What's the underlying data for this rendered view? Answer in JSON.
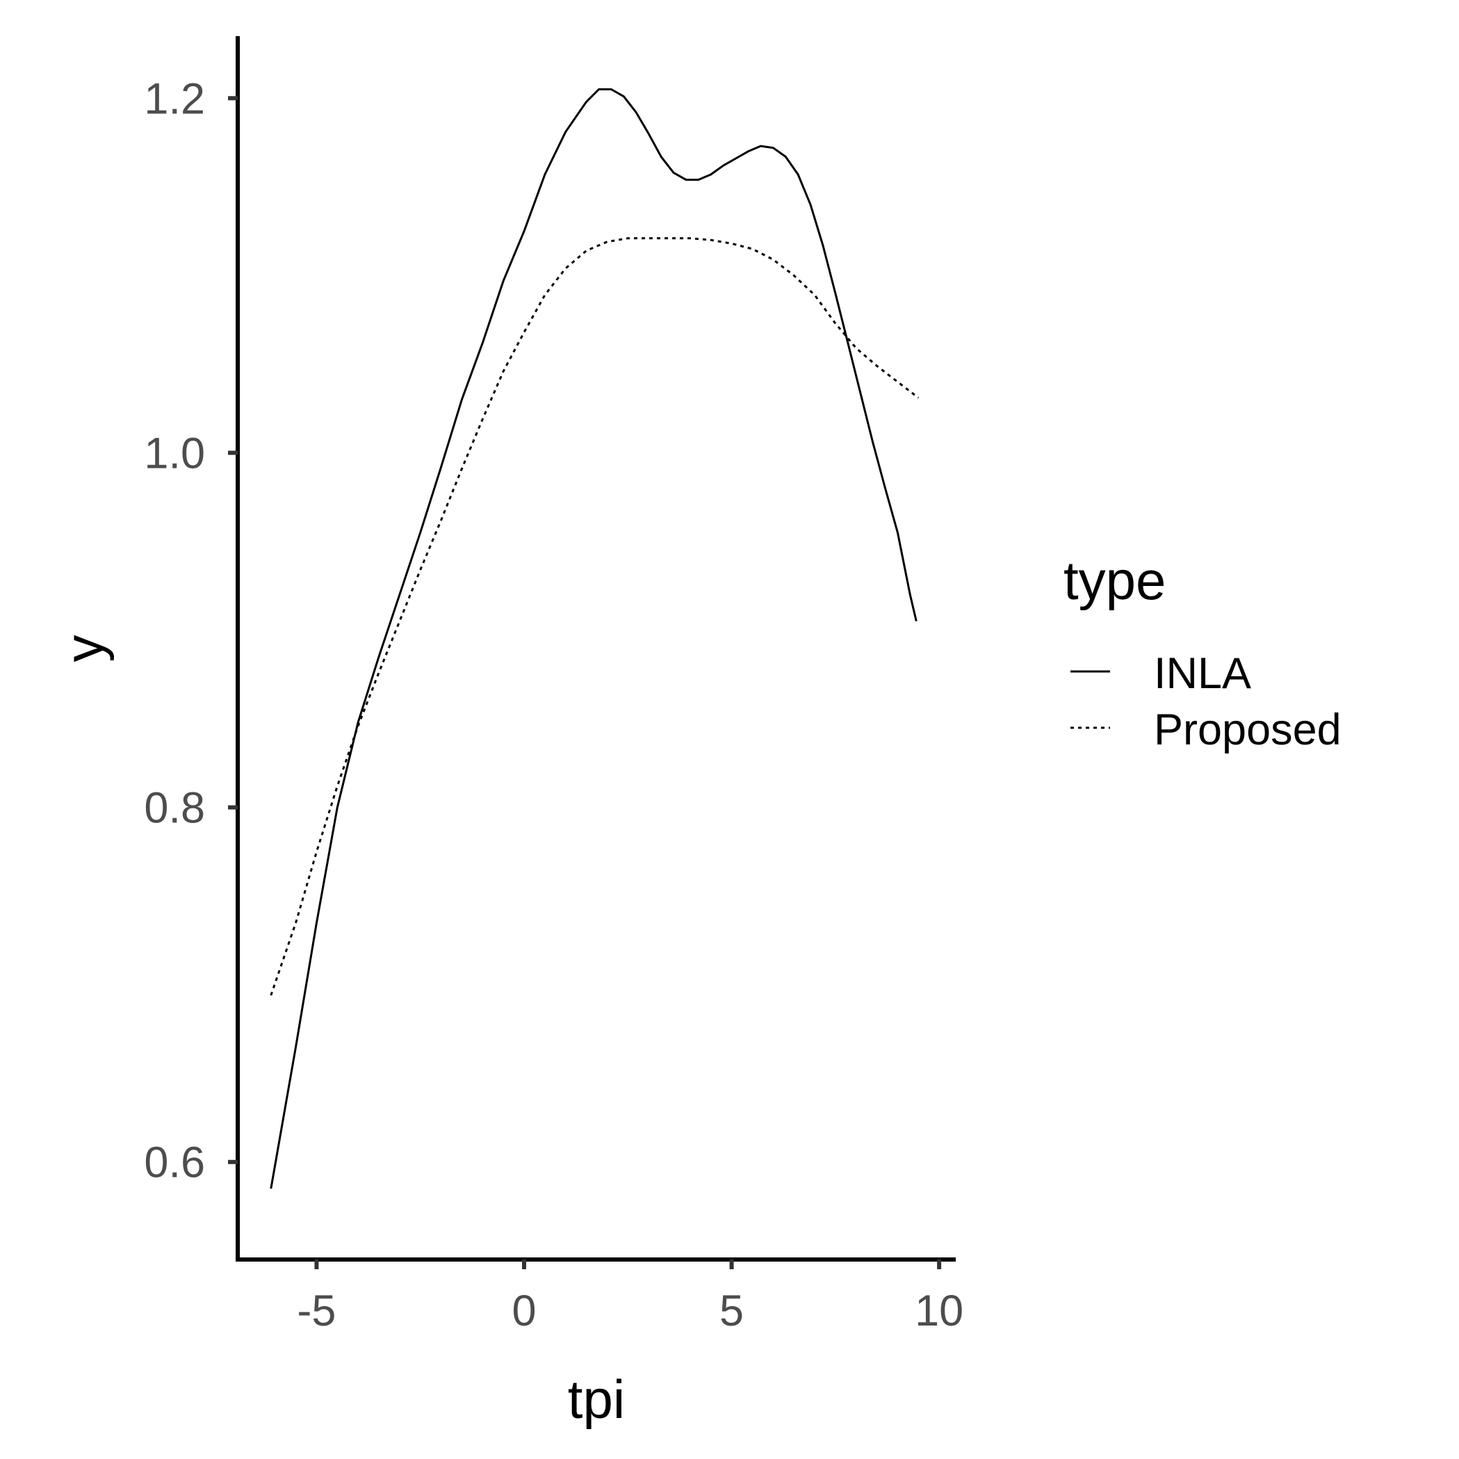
{
  "chart_data": {
    "type": "line",
    "xlabel": "tpi",
    "ylabel": "y",
    "xlim": [
      -6.9,
      10.4
    ],
    "ylim": [
      0.545,
      1.235
    ],
    "x_ticks": [
      -5,
      0,
      5,
      10
    ],
    "x_tick_labels": [
      "-5",
      "0",
      "5",
      "10"
    ],
    "y_ticks": [
      0.6,
      0.8,
      1.0,
      1.2
    ],
    "y_tick_labels": [
      "0.6",
      "0.8",
      "1.0",
      "1.2"
    ],
    "grid": false,
    "legend": {
      "title": "type",
      "position": "right"
    },
    "series": [
      {
        "name": "INLA",
        "dash": "solid",
        "color": "#000000",
        "x": [
          -6.1,
          -5.5,
          -5.0,
          -4.5,
          -4.0,
          -3.5,
          -3.0,
          -2.5,
          -2.0,
          -1.5,
          -1.0,
          -0.5,
          0.0,
          0.5,
          1.0,
          1.5,
          1.8,
          2.1,
          2.4,
          2.7,
          3.0,
          3.3,
          3.6,
          3.9,
          4.2,
          4.5,
          4.8,
          5.1,
          5.4,
          5.7,
          6.0,
          6.3,
          6.6,
          6.9,
          7.2,
          7.5,
          7.8,
          8.1,
          8.4,
          8.7,
          9.0,
          9.3,
          9.45
        ],
        "y": [
          0.585,
          0.665,
          0.735,
          0.8,
          0.848,
          0.885,
          0.92,
          0.955,
          0.992,
          1.03,
          1.062,
          1.097,
          1.125,
          1.157,
          1.181,
          1.198,
          1.205,
          1.205,
          1.201,
          1.192,
          1.18,
          1.167,
          1.158,
          1.154,
          1.154,
          1.157,
          1.162,
          1.166,
          1.17,
          1.173,
          1.172,
          1.167,
          1.157,
          1.14,
          1.117,
          1.09,
          1.062,
          1.034,
          1.006,
          0.98,
          0.955,
          0.92,
          0.905
        ]
      },
      {
        "name": "Proposed",
        "dash": "dotted",
        "color": "#000000",
        "x": [
          -6.1,
          -5.5,
          -5.0,
          -4.5,
          -4.0,
          -3.5,
          -3.0,
          -2.5,
          -2.0,
          -1.5,
          -1.0,
          -0.5,
          0.0,
          0.5,
          1.0,
          1.5,
          2.0,
          2.5,
          3.0,
          3.5,
          4.0,
          4.5,
          5.0,
          5.5,
          6.0,
          6.5,
          7.0,
          7.5,
          8.0,
          8.5,
          9.0,
          9.5
        ],
        "y": [
          0.694,
          0.735,
          0.775,
          0.812,
          0.846,
          0.876,
          0.905,
          0.934,
          0.962,
          0.991,
          1.019,
          1.046,
          1.068,
          1.089,
          1.104,
          1.114,
          1.119,
          1.121,
          1.121,
          1.121,
          1.121,
          1.12,
          1.118,
          1.115,
          1.109,
          1.1,
          1.089,
          1.073,
          1.059,
          1.049,
          1.04,
          1.031
        ]
      }
    ]
  }
}
